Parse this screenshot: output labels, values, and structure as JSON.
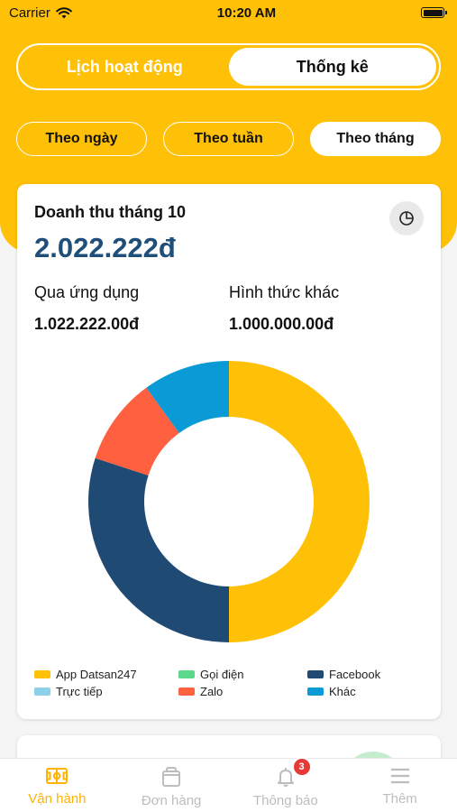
{
  "status_bar": {
    "carrier": "Carrier",
    "time": "10:20 AM"
  },
  "segment": {
    "tabs": [
      {
        "label": "Lịch hoạt động"
      },
      {
        "label": "Thống kê"
      }
    ],
    "active_index": 1
  },
  "period_filters": {
    "items": [
      {
        "label": "Theo ngày"
      },
      {
        "label": "Theo tuần"
      },
      {
        "label": "Theo tháng"
      }
    ],
    "active_index": 2
  },
  "revenue_card": {
    "title": "Doanh thu tháng 10",
    "total": "2.022.222đ",
    "via_app_label": "Qua ứng dụng",
    "via_app_value": "1.022.222.00đ",
    "other_label": "Hình thức khác",
    "other_value": "1.000.000.00đ",
    "pie_button_icon": "pie-chart-icon"
  },
  "chart_data": {
    "type": "pie",
    "style": "donut",
    "categories": [
      "App Datsan247",
      "Gọi điện",
      "Facebook",
      "Trực tiếp",
      "Zalo",
      "Khác"
    ],
    "values": [
      50,
      0,
      30,
      0,
      10,
      10
    ],
    "colors": [
      "#FFC107",
      "#5AD98A",
      "#1F4A73",
      "#8ECFEA",
      "#FF6040",
      "#0A9AD6"
    ]
  },
  "tab_bar": {
    "items": [
      {
        "label": "Vận hành",
        "icon": "stadium-icon"
      },
      {
        "label": "Đơn hàng",
        "icon": "bag-icon"
      },
      {
        "label": "Thông báo",
        "icon": "bell-icon",
        "badge": "3"
      },
      {
        "label": "Thêm",
        "icon": "menu-icon"
      }
    ],
    "active_index": 0
  },
  "colors": {
    "brand_yellow": "#FFC107",
    "total_navy": "#1F4E79",
    "active_tab": "#FFB300",
    "inactive_tab": "#BDBDBD",
    "badge_red": "#E53935"
  }
}
